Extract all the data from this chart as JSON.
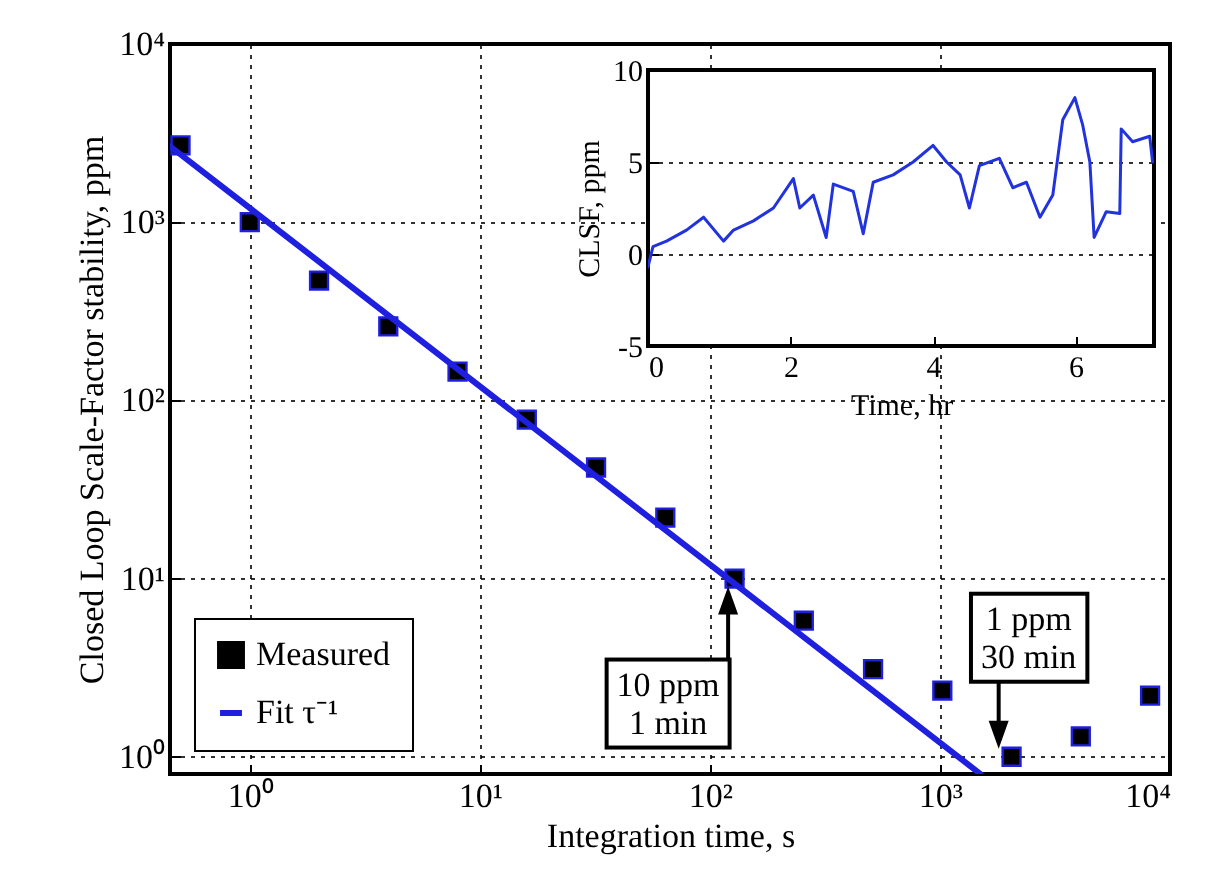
{
  "chart_data": [
    {
      "type": "scatter",
      "xlabel": "Integration time, s",
      "ylabel": "Closed Loop Scale-Factor stability, ppm",
      "log": "xy",
      "xlim": [
        0.45,
        10000
      ],
      "ylim": [
        0.8,
        10000
      ],
      "xticks": [
        {
          "value": 1,
          "label": "10⁰"
        },
        {
          "value": 10,
          "label": "10¹"
        },
        {
          "value": 100,
          "label": "10²"
        },
        {
          "value": 1000,
          "label": "10³"
        },
        {
          "value": 10000,
          "label": "10⁴"
        }
      ],
      "yticks": [
        {
          "value": 1,
          "label": "10⁰"
        },
        {
          "value": 10,
          "label": "10¹"
        },
        {
          "value": 100,
          "label": "10²"
        },
        {
          "value": 1000,
          "label": "10³"
        },
        {
          "value": 10000,
          "label": "10⁴"
        }
      ],
      "grid": true,
      "legend": "bottom left",
      "annotations": [
        {
          "text": "10 ppm\n1 min",
          "x": 120,
          "y": 10
        },
        {
          "text": "1 ppm\n30 min",
          "x": 1800,
          "y": 1
        }
      ],
      "series": [
        {
          "name": "Measured",
          "color": "#000000",
          "marker": "square",
          "x": [
            0.5,
            1,
            2,
            4,
            8,
            16,
            32,
            64,
            128,
            256,
            512,
            1024,
            2048,
            4096,
            8192
          ],
          "values": [
            2700,
            1000,
            470,
            260,
            145,
            78,
            42,
            22,
            10,
            5.8,
            3.1,
            2.35,
            1.0,
            1.3,
            2.2
          ]
        },
        {
          "name": "Fit τ⁻¹",
          "type": "line",
          "color": "#1f1fe0",
          "x": [
            0.45,
            1500
          ],
          "values": [
            2667,
            0.8
          ]
        }
      ]
    },
    {
      "type": "line",
      "xlabel": "Time, hr",
      "ylabel": "CLSF, ppm",
      "xlim": [
        0,
        7.1
      ],
      "ylim": [
        -5,
        10
      ],
      "xticks": [
        0,
        2,
        4,
        6
      ],
      "yticks": [
        -5,
        0,
        5,
        10
      ],
      "grid": "y",
      "series": [
        {
          "color": "#2233dd",
          "x": [
            0,
            0.07,
            0.26,
            0.54,
            0.78,
            1.06,
            1.2,
            1.48,
            1.76,
            2.04,
            2.13,
            2.32,
            2.5,
            2.6,
            2.88,
            3.02,
            3.16,
            3.44,
            3.72,
            4.0,
            4.19,
            4.38,
            4.51,
            4.65,
            4.93,
            5.12,
            5.31,
            5.5,
            5.68,
            5.82,
            5.99,
            6.1,
            6.2,
            6.26,
            6.43,
            6.62,
            6.64,
            6.8,
            7.04,
            7.08
          ],
          "values": [
            -0.7,
            0.4,
            0.7,
            1.3,
            2,
            0.7,
            1.3,
            1.8,
            2.5,
            4.1,
            2.5,
            3.2,
            0.9,
            3.8,
            3.4,
            1.1,
            3.9,
            4.3,
            5,
            5.9,
            5,
            4.3,
            2.5,
            4.8,
            5.2,
            3.6,
            3.9,
            2,
            3.2,
            7.3,
            8.5,
            7,
            5,
            0.9,
            2.3,
            2.2,
            6.8,
            6.1,
            6.4,
            5
          ]
        }
      ]
    }
  ]
}
